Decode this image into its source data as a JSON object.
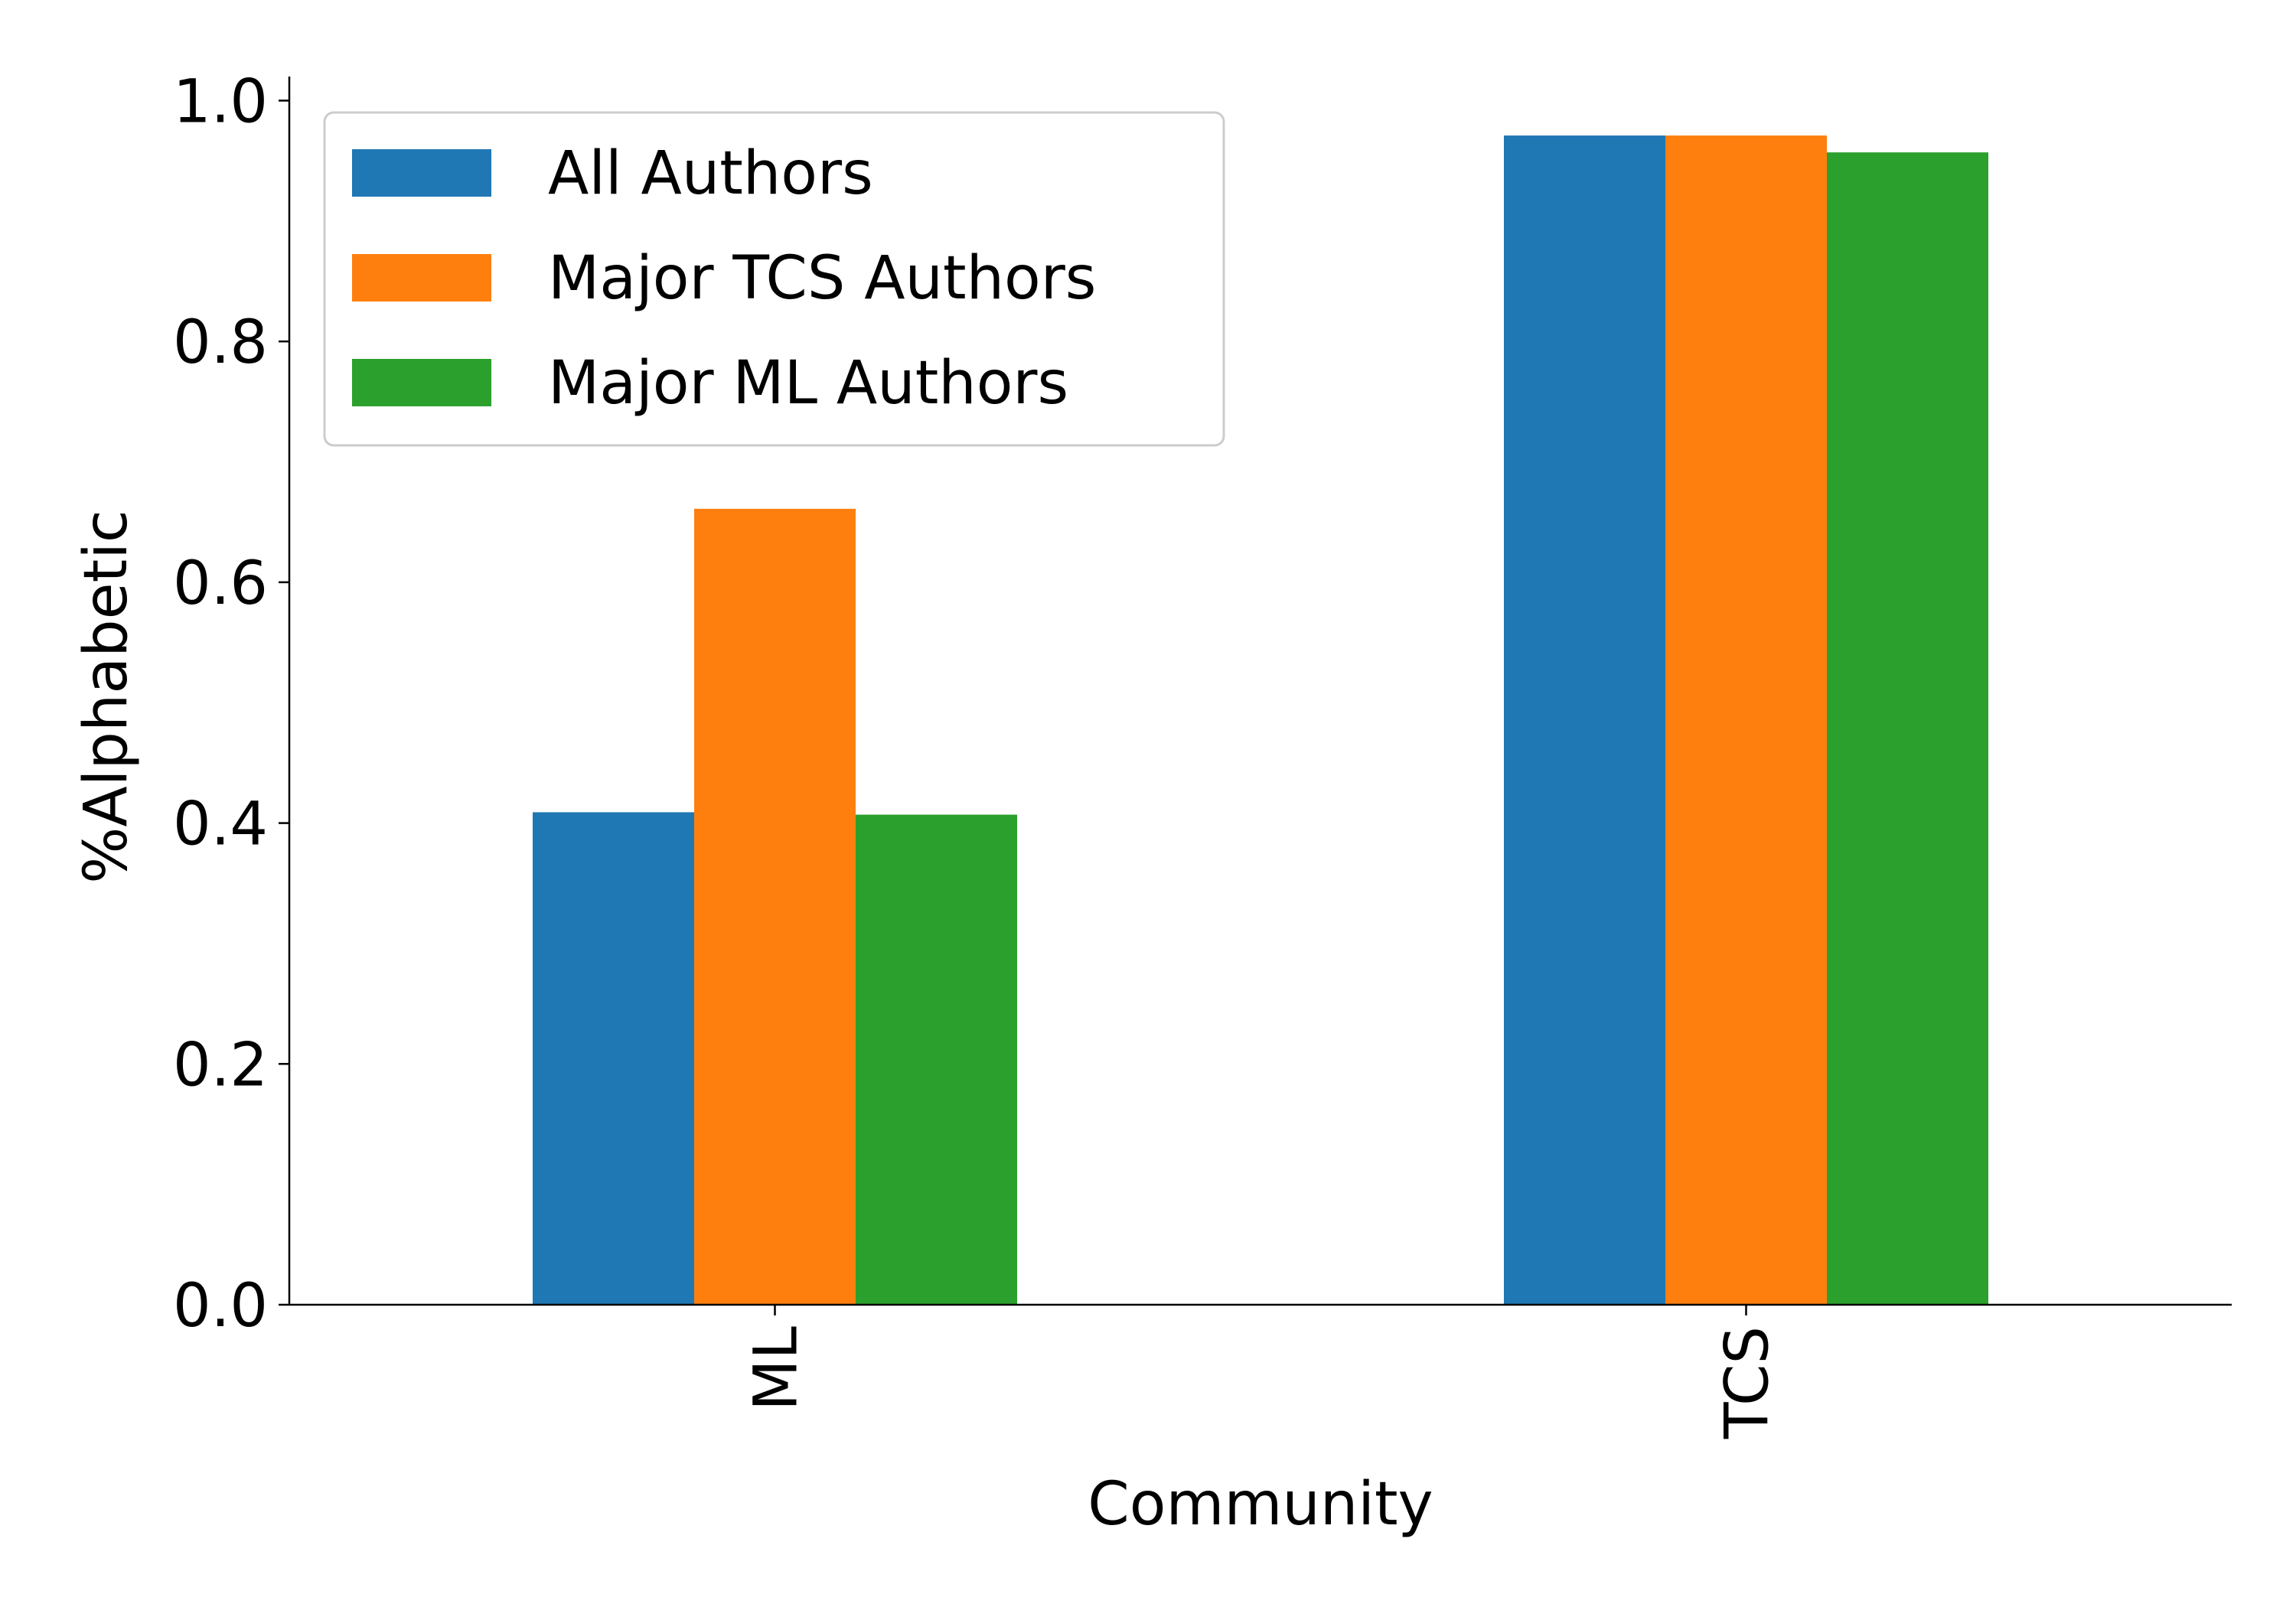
{
  "chart_data": {
    "type": "bar",
    "title": "",
    "xlabel": "Community",
    "ylabel": "%Alphabetic",
    "categories": [
      "ML",
      "TCS"
    ],
    "series": [
      {
        "name": "All Authors",
        "color": "#1f77b4",
        "values": [
          0.409,
          0.971
        ]
      },
      {
        "name": "Major TCS Authors",
        "color": "#ff7f0e",
        "values": [
          0.661,
          0.971
        ]
      },
      {
        "name": "Major ML Authors",
        "color": "#2ca02c",
        "values": [
          0.407,
          0.957
        ]
      }
    ],
    "ylim": [
      0,
      1.02
    ],
    "yticks": [
      0.0,
      0.2,
      0.4,
      0.6,
      0.8,
      1.0
    ],
    "ytick_labels": [
      "0.0",
      "0.2",
      "0.4",
      "0.6",
      "0.8",
      "1.0"
    ],
    "legend_position": "top-left",
    "grid": false
  }
}
